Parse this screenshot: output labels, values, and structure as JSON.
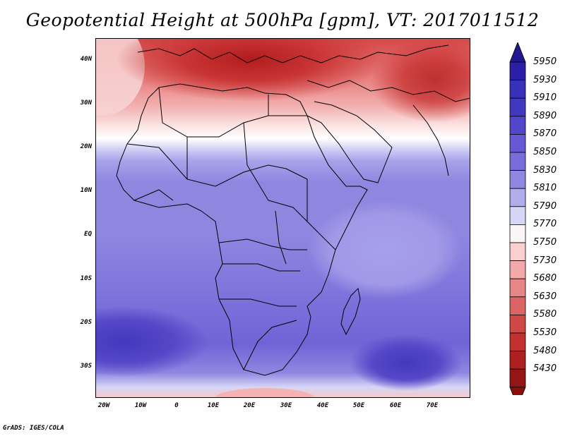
{
  "title": "Geopotential Height at 500hPa [gpm], VT: 2017011512",
  "footer": "GrADS: IGES/COLA",
  "axes": {
    "y_ticks": [
      "40N",
      "30N",
      "20N",
      "10N",
      "EQ",
      "10S",
      "20S",
      "30S"
    ],
    "x_ticks": [
      "20W",
      "10W",
      "0",
      "10E",
      "20E",
      "30E",
      "40E",
      "50E",
      "60E",
      "70E"
    ]
  },
  "colorbar": {
    "levels": [
      "5950",
      "5930",
      "5910",
      "5890",
      "5870",
      "5850",
      "5830",
      "5810",
      "5790",
      "5770",
      "5750",
      "5730",
      "5680",
      "5630",
      "5580",
      "5530",
      "5480",
      "5430"
    ],
    "colors": [
      "#2a1fa5",
      "#3730b8",
      "#4238c0",
      "#5246cb",
      "#6758d3",
      "#7a6ddb",
      "#9088e0",
      "#b1adeb",
      "#d7d6f6",
      "#fbf6f6",
      "#f9cfcf",
      "#f2a9a9",
      "#e68686",
      "#db6565",
      "#cf4848",
      "#c33030",
      "#ae1f1f",
      "#951414"
    ],
    "end_colors": {
      "top": "#22178f",
      "bottom": "#8a1010"
    }
  }
}
